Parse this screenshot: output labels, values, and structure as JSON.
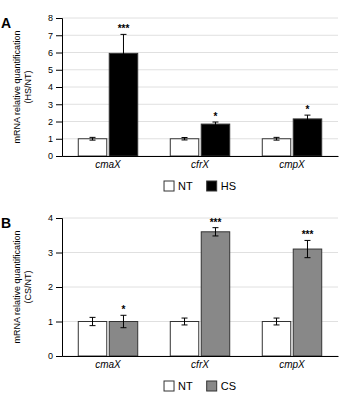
{
  "chart_data": [
    {
      "type": "bar",
      "title": "A",
      "ylabel": "mRNA relative quantification\n(HS/NT)",
      "categories": [
        "cmaX",
        "cfrX",
        "cmpX"
      ],
      "series": [
        {
          "name": "NT",
          "color": "white",
          "values": [
            1.0,
            1.0,
            1.0
          ],
          "errors": [
            0.08,
            0.07,
            0.08
          ]
        },
        {
          "name": "HS",
          "color": "black",
          "values": [
            5.95,
            1.85,
            2.15
          ],
          "errors": [
            1.1,
            0.12,
            0.22
          ],
          "significance": [
            "***",
            "*",
            "*"
          ]
        }
      ],
      "ylim": [
        0,
        8
      ],
      "yticks": [
        0,
        1,
        2,
        3,
        4,
        5,
        6,
        7,
        8
      ],
      "grid": true,
      "legend": "bottom"
    },
    {
      "type": "bar",
      "title": "B",
      "ylabel": "mRNA relative quantification\n(CS/NT)",
      "categories": [
        "cmaX",
        "cfrX",
        "cmpX"
      ],
      "series": [
        {
          "name": "NT",
          "color": "white",
          "values": [
            1.0,
            1.0,
            1.0
          ],
          "errors": [
            0.12,
            0.1,
            0.1
          ]
        },
        {
          "name": "CS",
          "color": "#888888",
          "values": [
            1.0,
            3.6,
            3.1
          ],
          "errors": [
            0.18,
            0.12,
            0.25
          ],
          "significance": [
            "*",
            "***",
            "***"
          ]
        }
      ],
      "ylim": [
        0,
        4
      ],
      "yticks": [
        0,
        1,
        2,
        3,
        4
      ],
      "grid": true,
      "legend": "bottom"
    }
  ]
}
